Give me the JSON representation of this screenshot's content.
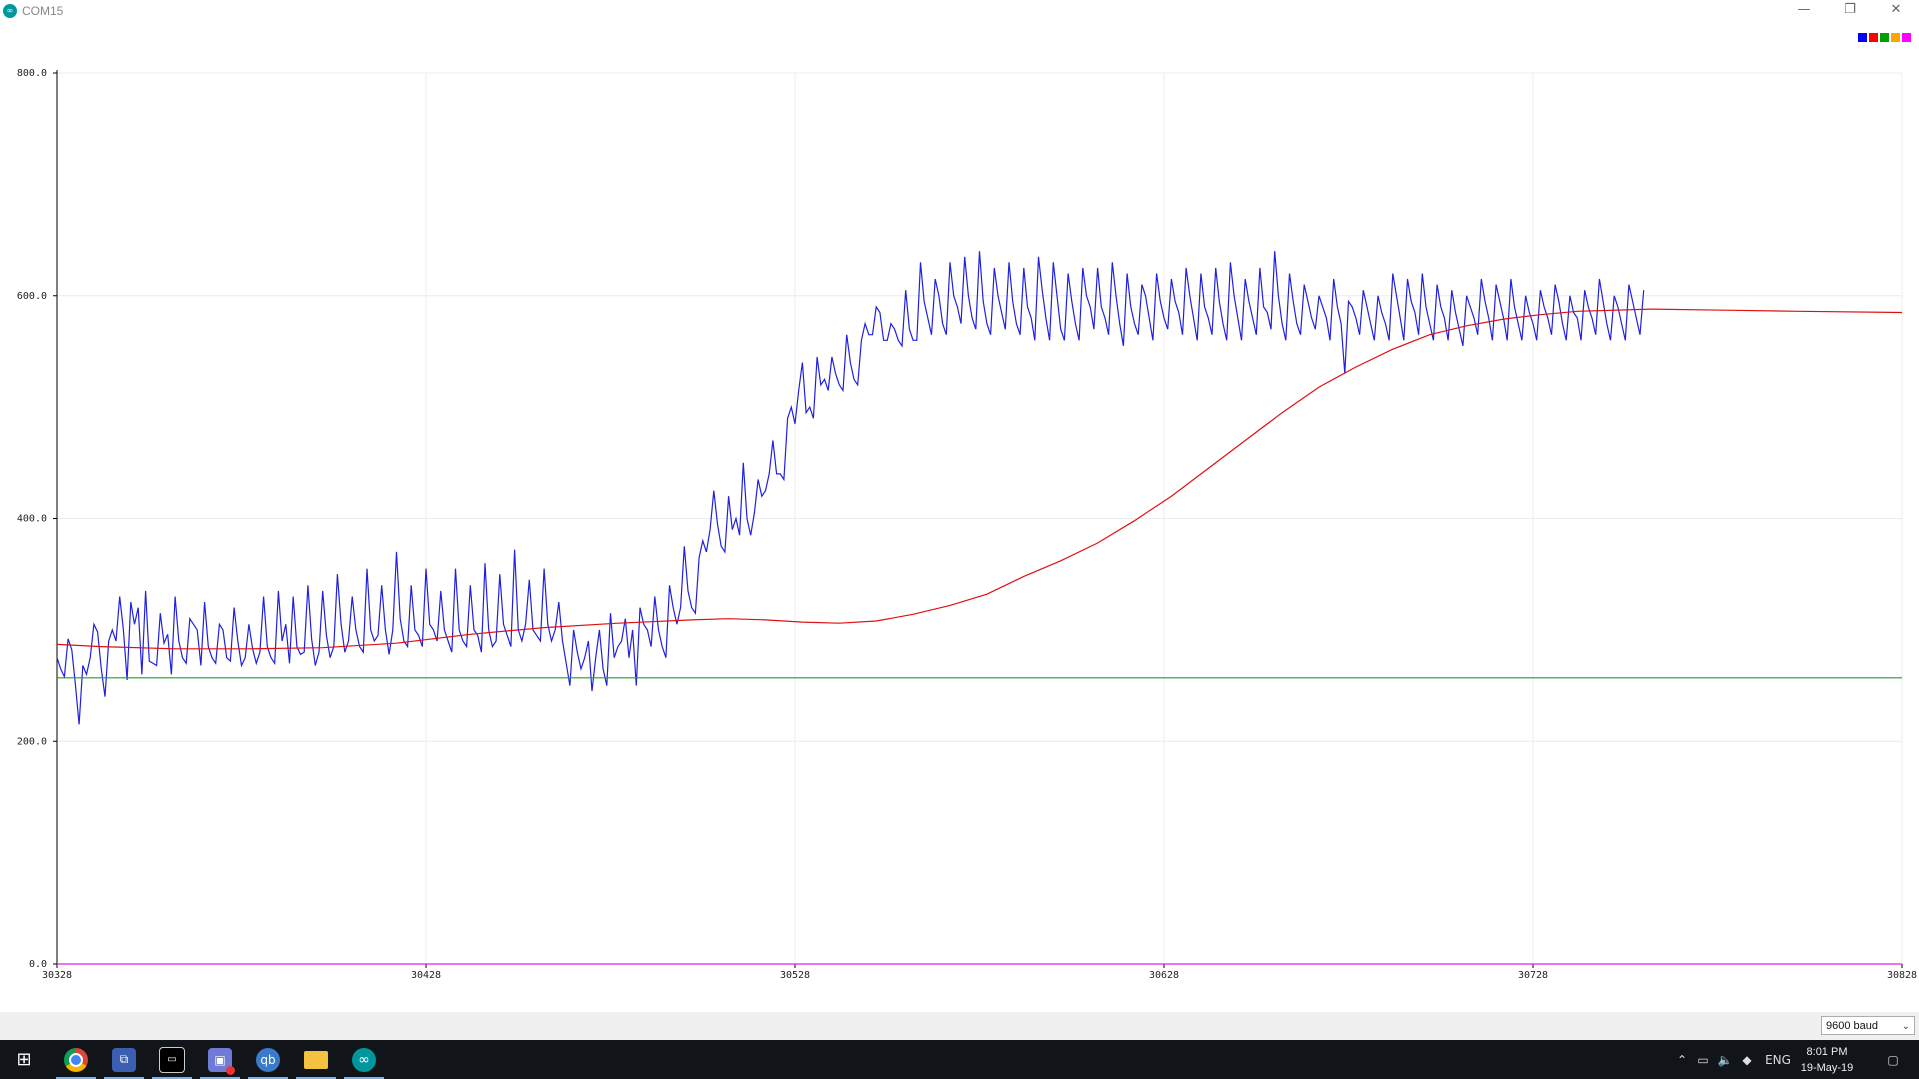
{
  "window": {
    "title": "COM15",
    "app_icon": "arduino-icon"
  },
  "legend": {
    "colors": [
      "#0000ff",
      "#ff0000",
      "#00a000",
      "#ffa500",
      "#ff00ff"
    ]
  },
  "chart_data": {
    "type": "line",
    "title": "",
    "xlabel": "",
    "ylabel": "",
    "xlim": [
      30328,
      30828
    ],
    "ylim": [
      0,
      800
    ],
    "x_ticks": [
      "30328",
      "30428",
      "30528",
      "30628",
      "30728",
      "30828"
    ],
    "y_ticks": [
      "0.0",
      "200.0",
      "400.0",
      "600.0",
      "800.0"
    ],
    "grid": true,
    "x_start": 30328,
    "x_step": 1,
    "series": [
      {
        "color": "#2020e0",
        "values": [
          275,
          265,
          258,
          292,
          282,
          250,
          215,
          268,
          260,
          275,
          305,
          298,
          265,
          240,
          290,
          300,
          290,
          330,
          300,
          255,
          325,
          305,
          320,
          260,
          335,
          272,
          270,
          268,
          315,
          288,
          296,
          260,
          330,
          290,
          275,
          270,
          310,
          305,
          300,
          268,
          325,
          285,
          275,
          270,
          305,
          300,
          275,
          272,
          320,
          290,
          268,
          275,
          305,
          283,
          270,
          280,
          330,
          285,
          275,
          270,
          335,
          290,
          305,
          270,
          330,
          285,
          278,
          280,
          340,
          292,
          268,
          280,
          335,
          295,
          275,
          285,
          350,
          305,
          280,
          290,
          330,
          300,
          285,
          280,
          355,
          300,
          290,
          295,
          340,
          300,
          278,
          300,
          370,
          310,
          290,
          285,
          340,
          300,
          295,
          285,
          355,
          305,
          300,
          290,
          335,
          300,
          290,
          280,
          355,
          300,
          290,
          285,
          340,
          300,
          295,
          280,
          360,
          300,
          285,
          290,
          350,
          305,
          295,
          285,
          372,
          300,
          290,
          305,
          345,
          300,
          295,
          290,
          355,
          305,
          290,
          300,
          325,
          290,
          270,
          250,
          300,
          280,
          265,
          275,
          290,
          245,
          275,
          300,
          265,
          250,
          315,
          275,
          285,
          290,
          310,
          275,
          300,
          250,
          320,
          305,
          300,
          285,
          330,
          300,
          285,
          275,
          340,
          320,
          305,
          320,
          375,
          335,
          320,
          315,
          365,
          380,
          370,
          390,
          425,
          395,
          375,
          370,
          420,
          390,
          400,
          385,
          450,
          400,
          385,
          405,
          435,
          420,
          425,
          440,
          470,
          440,
          440,
          435,
          490,
          500,
          485,
          515,
          540,
          495,
          500,
          490,
          545,
          520,
          525,
          515,
          545,
          530,
          520,
          515,
          565,
          540,
          525,
          520,
          560,
          575,
          565,
          565,
          590,
          585,
          560,
          560,
          575,
          570,
          560,
          555,
          605,
          570,
          560,
          560,
          630,
          595,
          580,
          565,
          615,
          600,
          575,
          565,
          630,
          600,
          590,
          575,
          635,
          600,
          580,
          570,
          640,
          595,
          575,
          565,
          625,
          600,
          585,
          570,
          630,
          595,
          575,
          565,
          625,
          590,
          580,
          560,
          635,
          605,
          580,
          560,
          630,
          600,
          570,
          560,
          620,
          595,
          575,
          560,
          625,
          600,
          590,
          570,
          625,
          590,
          580,
          565,
          630,
          600,
          575,
          555,
          620,
          590,
          575,
          565,
          610,
          600,
          580,
          560,
          620,
          595,
          580,
          570,
          615,
          595,
          585,
          565,
          625,
          600,
          580,
          560,
          620,
          590,
          580,
          565,
          625,
          595,
          575,
          560,
          630,
          600,
          580,
          560,
          615,
          595,
          580,
          565,
          625,
          590,
          585,
          570,
          640,
          600,
          575,
          560,
          620,
          595,
          575,
          565,
          610,
          595,
          580,
          570,
          600,
          590,
          580,
          560,
          615,
          590,
          575,
          530,
          595,
          590,
          580,
          565,
          605,
          590,
          575,
          560,
          600,
          585,
          575,
          560,
          620,
          600,
          580,
          560,
          615,
          595,
          585,
          565,
          620,
          590,
          575,
          560,
          610,
          590,
          580,
          560,
          605,
          585,
          570,
          555,
          600,
          590,
          580,
          565,
          615,
          595,
          580,
          560,
          610,
          595,
          580,
          560,
          615,
          590,
          575,
          560,
          600,
          585,
          575,
          560,
          605,
          590,
          580,
          565,
          610,
          595,
          575,
          560,
          600,
          585,
          580,
          560,
          605,
          590,
          580,
          565,
          615,
          595,
          575,
          560,
          600,
          590,
          575,
          560,
          610,
          595,
          580,
          565,
          605
        ]
      },
      {
        "color": "#e01010",
        "smooth": [
          [
            30328,
            287
          ],
          [
            30340,
            285
          ],
          [
            30360,
            283
          ],
          [
            30380,
            283
          ],
          [
            30400,
            284
          ],
          [
            30420,
            288
          ],
          [
            30440,
            296
          ],
          [
            30460,
            302
          ],
          [
            30480,
            306
          ],
          [
            30500,
            309
          ],
          [
            30510,
            310
          ],
          [
            30520,
            309
          ],
          [
            30530,
            307
          ],
          [
            30540,
            306
          ],
          [
            30550,
            308
          ],
          [
            30560,
            314
          ],
          [
            30570,
            322
          ],
          [
            30580,
            332
          ],
          [
            30590,
            348
          ],
          [
            30600,
            362
          ],
          [
            30610,
            378
          ],
          [
            30620,
            398
          ],
          [
            30630,
            420
          ],
          [
            30640,
            445
          ],
          [
            30650,
            470
          ],
          [
            30660,
            495
          ],
          [
            30670,
            518
          ],
          [
            30680,
            536
          ],
          [
            30690,
            552
          ],
          [
            30700,
            565
          ],
          [
            30710,
            573
          ],
          [
            30720,
            579
          ],
          [
            30730,
            583
          ],
          [
            30740,
            586
          ],
          [
            30760,
            588
          ],
          [
            30780,
            587
          ],
          [
            30800,
            586
          ],
          [
            30828,
            585
          ]
        ]
      },
      {
        "color": "#20a020",
        "smooth": [
          [
            30328,
            257
          ],
          [
            30828,
            257
          ]
        ]
      },
      {
        "color": "#e020e0",
        "smooth": [
          [
            30328,
            0
          ],
          [
            30828,
            0
          ]
        ]
      }
    ]
  },
  "status_bar": {
    "baud": "9600 baud"
  },
  "taskbar": {
    "apps": [
      {
        "name": "windows-start-icon"
      },
      {
        "name": "chrome-icon"
      },
      {
        "name": "network-app-icon"
      },
      {
        "name": "terminal-icon"
      },
      {
        "name": "camera-app-icon"
      },
      {
        "name": "qbittorrent-icon",
        "label": "qb"
      },
      {
        "name": "file-explorer-icon"
      },
      {
        "name": "arduino-icon",
        "label": "∞"
      }
    ],
    "language": "ENG",
    "time": "8:01 PM",
    "date": "19-May-19"
  }
}
